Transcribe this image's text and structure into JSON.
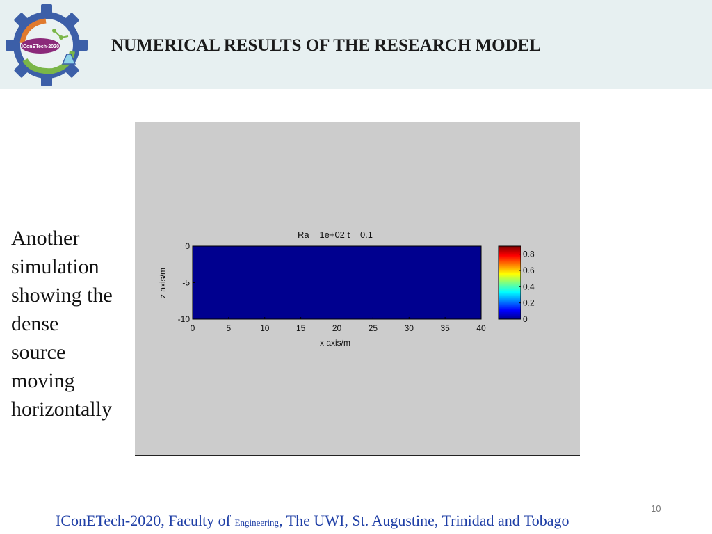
{
  "header": {
    "title": "NUMERICAL RESULTS OF THE RESEARCH MODEL",
    "logo_text": "IConETech-2020",
    "band_color": "#e7f0f1"
  },
  "body": {
    "text_lines": [
      "Another",
      "simulation",
      "showing the",
      "dense",
      "source",
      "moving",
      "horizontally"
    ]
  },
  "chart_data": {
    "type": "heatmap",
    "title": "Ra = 1e+02   t = 0.1",
    "xlabel": "x axis/m",
    "ylabel": "z axis/m",
    "x_ticks": [
      0,
      5,
      10,
      15,
      20,
      25,
      30,
      35,
      40
    ],
    "y_ticks": [
      0,
      -5,
      -10
    ],
    "xlim": [
      0,
      40
    ],
    "ylim": [
      -10,
      0
    ],
    "field_value": 0,
    "field_color": "#00008f",
    "colorbar": {
      "ticks": [
        0.8,
        0.6,
        0.4,
        0.2,
        0
      ],
      "range": [
        0,
        0.9
      ],
      "colormap": "jet"
    },
    "grid": false
  },
  "footer": {
    "part1": "IConETech-2020, Faculty of ",
    "part2": "Engineering",
    "part3": ", The UWI, St. Augustine, Trinidad and Tobago",
    "color": "#1f3fa6"
  },
  "page_number": "10"
}
